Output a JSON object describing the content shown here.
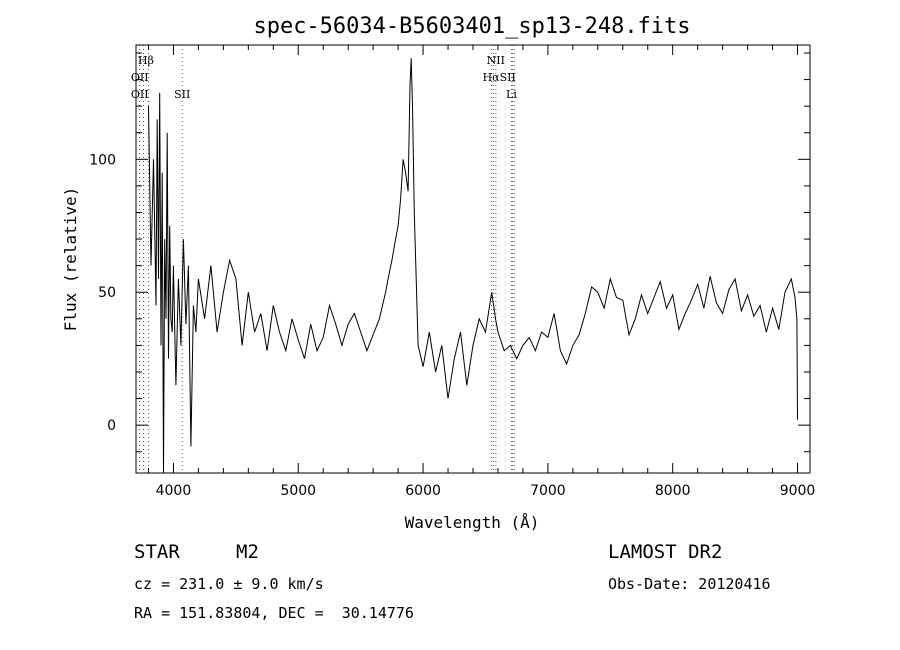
{
  "chart_data": {
    "type": "line",
    "title": "spec-56034-B5603401_sp13-248.fits",
    "xlabel": "Wavelength (Å)",
    "ylabel": "Flux (relative)",
    "xlim": [
      3700,
      9100
    ],
    "ylim": [
      -18,
      143
    ],
    "xticks": [
      4000,
      5000,
      6000,
      7000,
      8000,
      9000
    ],
    "yticks": [
      0,
      50,
      100
    ],
    "grid": false,
    "series": [
      {
        "color": "#000000",
        "x": [
          3800,
          3820,
          3840,
          3860,
          3870,
          3880,
          3890,
          3900,
          3910,
          3920,
          3930,
          3940,
          3950,
          3960,
          3970,
          3980,
          3990,
          4000,
          4020,
          4040,
          4060,
          4080,
          4100,
          4120,
          4140,
          4160,
          4180,
          4200,
          4250,
          4300,
          4350,
          4400,
          4450,
          4500,
          4550,
          4600,
          4650,
          4700,
          4750,
          4800,
          4850,
          4900,
          4950,
          5000,
          5050,
          5100,
          5150,
          5200,
          5250,
          5300,
          5350,
          5400,
          5450,
          5500,
          5550,
          5600,
          5650,
          5700,
          5720,
          5750,
          5780,
          5800,
          5820,
          5840,
          5860,
          5880,
          5895,
          5905,
          5915,
          5930,
          5960,
          6000,
          6050,
          6100,
          6150,
          6200,
          6250,
          6300,
          6350,
          6400,
          6450,
          6500,
          6550,
          6580,
          6600,
          6650,
          6700,
          6750,
          6800,
          6850,
          6900,
          6950,
          7000,
          7050,
          7100,
          7150,
          7200,
          7250,
          7300,
          7350,
          7400,
          7450,
          7500,
          7550,
          7600,
          7650,
          7700,
          7750,
          7800,
          7850,
          7900,
          7950,
          8000,
          8050,
          8100,
          8150,
          8200,
          8250,
          8300,
          8350,
          8400,
          8450,
          8500,
          8550,
          8600,
          8650,
          8700,
          8750,
          8800,
          8850,
          8900,
          8950,
          8980,
          8995,
          9000
        ],
        "y": [
          120,
          60,
          100,
          45,
          115,
          55,
          125,
          30,
          95,
          -18,
          70,
          40,
          110,
          25,
          75,
          40,
          35,
          60,
          15,
          55,
          30,
          70,
          38,
          60,
          -8,
          45,
          35,
          55,
          40,
          60,
          35,
          50,
          62,
          55,
          30,
          50,
          35,
          42,
          28,
          45,
          35,
          28,
          40,
          32,
          25,
          38,
          28,
          33,
          45,
          38,
          30,
          38,
          42,
          35,
          28,
          34,
          40,
          50,
          55,
          62,
          70,
          75,
          85,
          100,
          95,
          88,
          128,
          138,
          120,
          80,
          30,
          22,
          35,
          20,
          30,
          10,
          25,
          35,
          15,
          30,
          40,
          35,
          50,
          40,
          35,
          28,
          30,
          25,
          30,
          33,
          28,
          35,
          33,
          42,
          28,
          23,
          30,
          34,
          42,
          52,
          50,
          44,
          55,
          48,
          47,
          34,
          40,
          49,
          42,
          48,
          54,
          44,
          49,
          36,
          42,
          47,
          53,
          44,
          56,
          46,
          42,
          51,
          55,
          43,
          49,
          41,
          45,
          35,
          44,
          36,
          50,
          55,
          48,
          40,
          2
        ]
      }
    ],
    "line_markers": [
      {
        "label": "Hβ",
        "x": 3780,
        "row": 1
      },
      {
        "label": "OII",
        "x": 3730,
        "row": 2
      },
      {
        "label": "OII",
        "x": 3730,
        "row": 3
      },
      {
        "label": "SII",
        "x": 4070,
        "row": 3
      },
      {
        "label": "NII",
        "x": 6583,
        "row": 1
      },
      {
        "label": "HαSII",
        "x": 6610,
        "row": 2
      },
      {
        "label": "Li",
        "x": 6708,
        "row": 3
      }
    ],
    "marker_lines_x": [
      3727,
      3760,
      3800,
      4070,
      6548,
      6563,
      6583,
      6708,
      6717,
      6731
    ]
  },
  "info": {
    "object_class": "STAR",
    "subclass": "M2",
    "cz": "cz = 231.0 ± 9.0 km/s",
    "coords": "RA = 151.83804, DEC =  30.14776",
    "survey": "LAMOST DR2",
    "obs_date": "Obs-Date: 20120416"
  }
}
